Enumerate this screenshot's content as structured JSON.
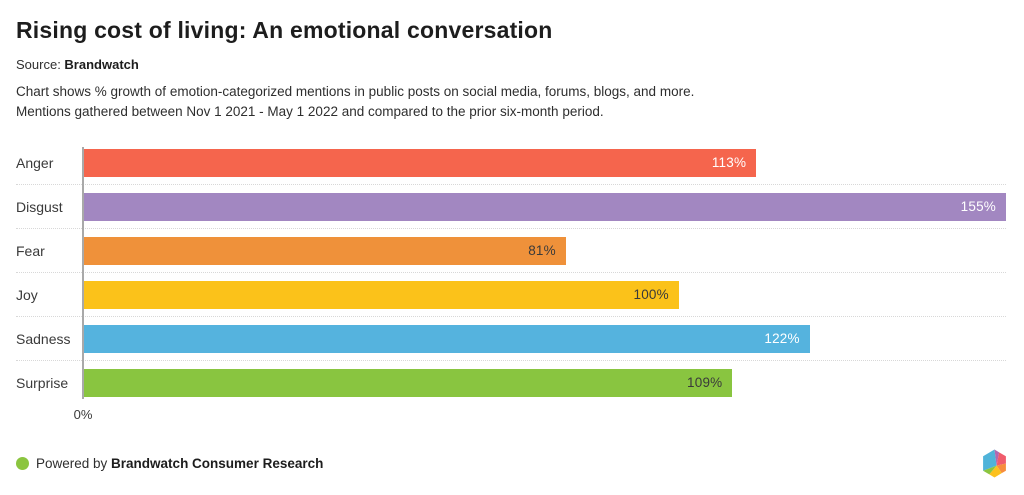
{
  "header": {
    "title": "Rising cost of living: An emotional conversation",
    "source_prefix": "Source: ",
    "source_name": "Brandwatch",
    "description_line1": "Chart shows % growth of emotion-categorized mentions in public posts on social media, forums, blogs, and more.",
    "description_line2": "Mentions gathered between Nov 1 2021 - May 1 2022 and compared to the prior six-month period."
  },
  "chart_data": {
    "type": "bar",
    "orientation": "horizontal",
    "title": "Rising cost of living: An emotional conversation",
    "categories": [
      "Anger",
      "Disgust",
      "Fear",
      "Joy",
      "Sadness",
      "Surprise"
    ],
    "values": [
      113,
      155,
      81,
      100,
      122,
      109
    ],
    "value_labels": [
      "113%",
      "155%",
      "81%",
      "100%",
      "122%",
      "109%"
    ],
    "bar_colors": [
      "#f5654d",
      "#a287c1",
      "#ef913a",
      "#fbc21a",
      "#55b3de",
      "#89c540"
    ],
    "value_label_colors": [
      "#ffffff",
      "#ffffff",
      "#3a3a3a",
      "#3a3a3a",
      "#ffffff",
      "#3a3a3a"
    ],
    "xlim": [
      0,
      155
    ],
    "x_axis_origin_label": "0%",
    "grid": "dotted row separators",
    "legend": "none",
    "unit": "percent growth of mentions"
  },
  "footer": {
    "powered_by_prefix": "Powered by ",
    "brand_name": "Brandwatch Consumer Research",
    "dot_color": "#8bc53f",
    "logo_colors": [
      "#4fb3d9",
      "#b168b1",
      "#f05c6c",
      "#f78e3d",
      "#fcc11e",
      "#8bc53f"
    ]
  }
}
